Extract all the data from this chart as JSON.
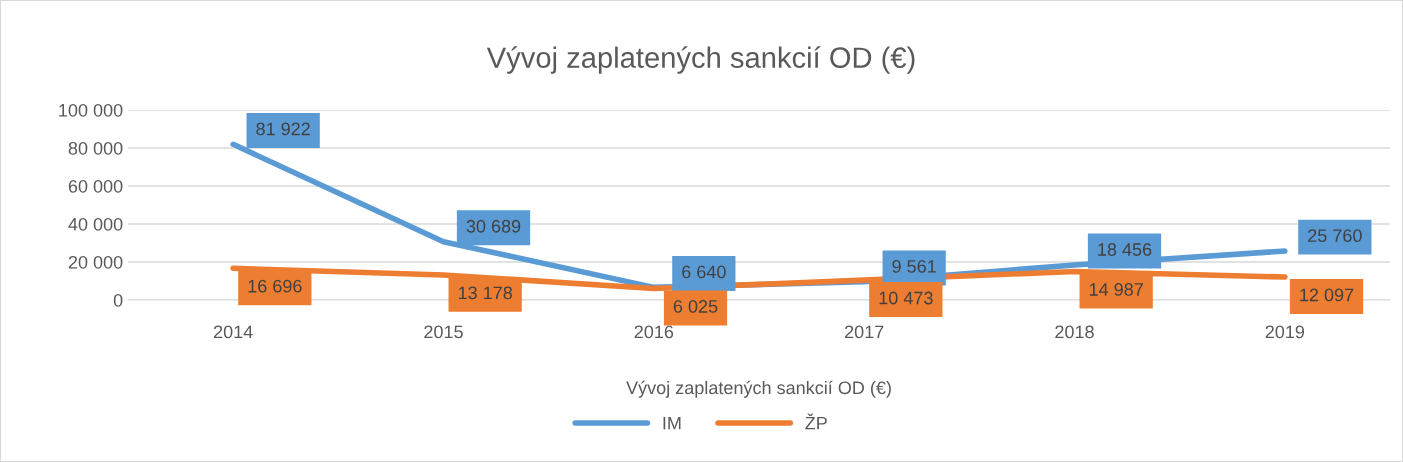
{
  "chart_data": {
    "type": "line",
    "title": "Vývoj zaplatených sankcií OD (€)",
    "xlabel": "Vývoj zaplatených sankcií OD (€)",
    "categories": [
      "2014",
      "2015",
      "2016",
      "2017",
      "2018",
      "2019"
    ],
    "series": [
      {
        "name": "IM",
        "color": "#5b9bd5",
        "values": [
          81922,
          30689,
          6640,
          9561,
          18456,
          25760
        ],
        "value_labels": [
          "81 922",
          "30 689",
          "6 640",
          "9 561",
          "18 456",
          "25 760"
        ]
      },
      {
        "name": "ŽP",
        "color": "#ed7d31",
        "values": [
          16696,
          13178,
          6025,
          10473,
          14987,
          12097
        ],
        "value_labels": [
          "16 696",
          "13 178",
          "6 025",
          "10 473",
          "14 987",
          "12 097"
        ]
      }
    ],
    "ylim": [
      0,
      100000
    ],
    "yticks": [
      {
        "value": 0,
        "label": "0"
      },
      {
        "value": 20000,
        "label": "20 000"
      },
      {
        "value": 40000,
        "label": "40 000"
      },
      {
        "value": 60000,
        "label": "60 000"
      },
      {
        "value": 80000,
        "label": "80 000"
      },
      {
        "value": 100000,
        "label": "100 000"
      }
    ],
    "grid": "y",
    "legend": "bottom",
    "marker": "none",
    "line_style": "solid"
  }
}
